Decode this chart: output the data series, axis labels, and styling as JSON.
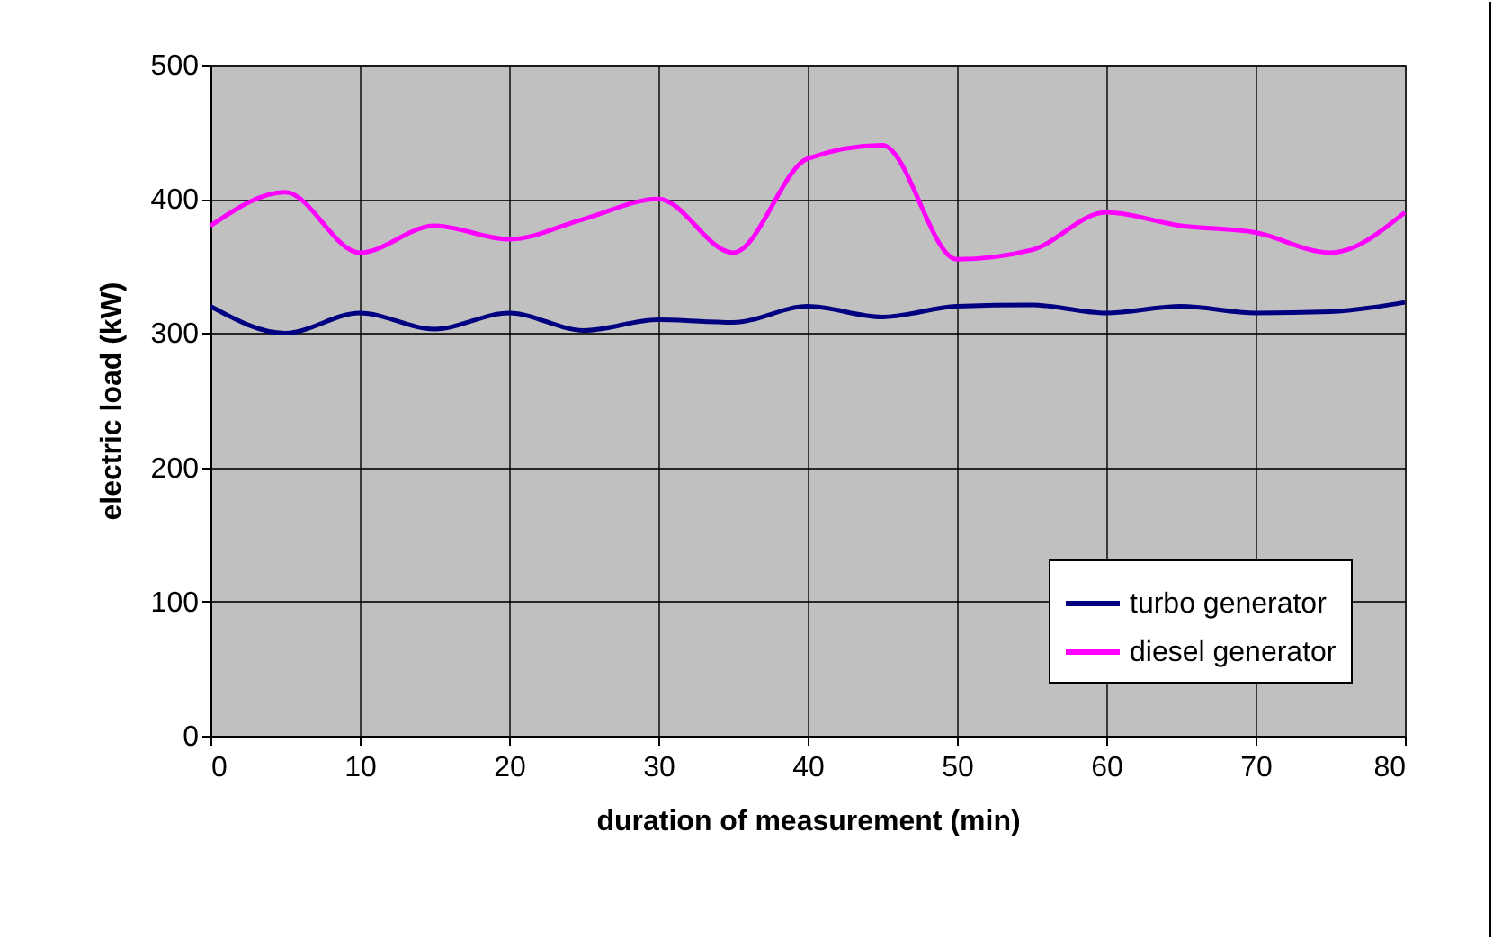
{
  "chart_data": {
    "type": "line",
    "xlabel": "duration of measurement (min)",
    "ylabel": "electric load (kW)",
    "x": [
      0,
      5,
      10,
      15,
      20,
      25,
      30,
      35,
      40,
      45,
      50,
      55,
      60,
      65,
      70,
      75,
      80
    ],
    "series": [
      {
        "name": "turbo generator",
        "color": "#000080",
        "values": [
          320,
          300,
          315,
          303,
          315,
          302,
          310,
          308,
          320,
          312,
          320,
          321,
          315,
          320,
          315,
          316,
          323
        ]
      },
      {
        "name": "diesel generator",
        "color": "#ff00ff",
        "values": [
          380,
          405,
          360,
          380,
          370,
          385,
          400,
          360,
          430,
          440,
          355,
          362,
          390,
          380,
          375,
          360,
          390
        ]
      }
    ],
    "xlim": [
      0,
      80
    ],
    "xticks": [
      0,
      10,
      20,
      30,
      40,
      50,
      60,
      70,
      80
    ],
    "ylim": [
      0,
      500
    ],
    "yticks": [
      0,
      100,
      200,
      300,
      400,
      500
    ],
    "grid": true,
    "legend": "bottom right",
    "marker": "none",
    "line_style": "solid"
  }
}
